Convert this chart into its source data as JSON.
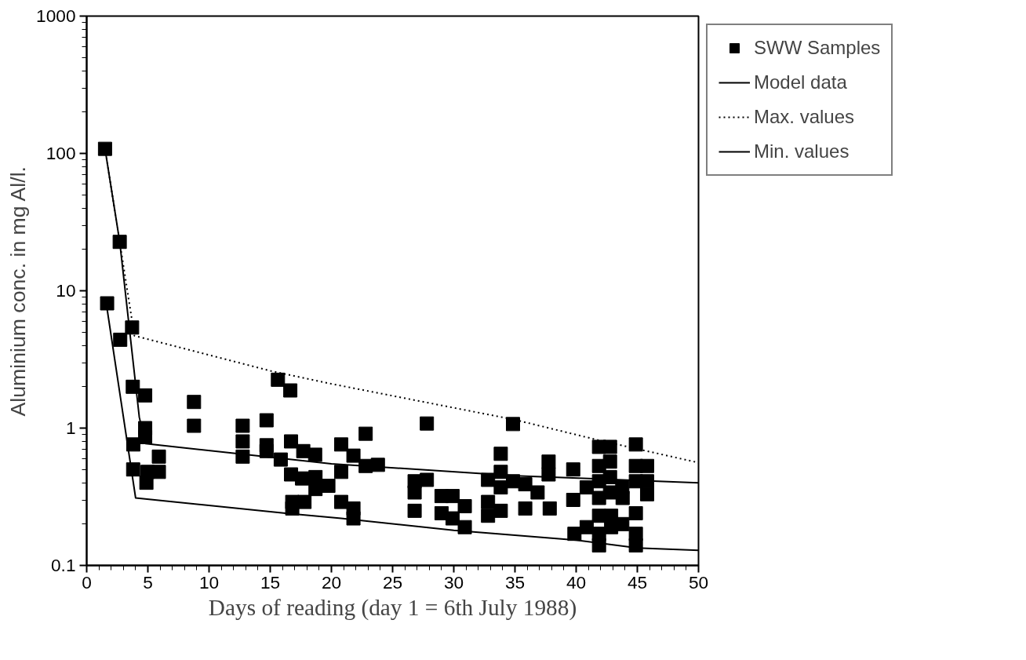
{
  "chart_data": {
    "type": "scatter",
    "xlabel": "Days of reading (day 1 = 6th July 1988)",
    "ylabel": "Aluminium conc. in mg Al/l.",
    "xlim": [
      0,
      50
    ],
    "xticks": [
      0,
      5,
      10,
      15,
      20,
      25,
      30,
      35,
      40,
      45,
      50
    ],
    "ylim": [
      0.1,
      1000
    ],
    "yticks": [
      0.1,
      1,
      10,
      100,
      1000
    ],
    "log": "y",
    "grid": false,
    "legend": "top right",
    "series": [
      {
        "name": "SWW Samples",
        "marker": "square",
        "color": "#000000",
        "x": [
          1.5,
          2.7,
          1.67,
          3.71,
          2.74,
          3.77,
          4.78,
          8.77,
          8.77,
          4.78,
          4.78,
          3.81,
          5.9,
          3.8,
          4.97,
          5.9,
          4.88,
          12.75,
          12.75,
          12.75,
          14.7,
          14.7,
          14.7,
          15.63,
          16.64,
          16.7,
          15.86,
          17.7,
          18.67,
          16.7,
          17.6,
          18.7,
          18.7,
          19.75,
          16.8,
          16.8,
          17.8,
          20.8,
          20.8,
          20.8,
          21.8,
          22.8,
          23.8,
          22.8,
          21.8,
          21.8,
          27.8,
          26.8,
          27.8,
          26.8,
          26.8,
          29.0,
          29.9,
          30.9,
          29.0,
          29.9,
          30.9,
          34.84,
          33.84,
          33.84,
          32.8,
          33.84,
          34.84,
          35.84,
          36.85,
          32.8,
          32.8,
          33.84,
          35.84,
          37.75,
          37.75,
          37.84,
          39.76,
          39.76,
          39.86,
          40.86,
          40.86,
          41.87,
          41.87,
          41.87,
          41.87,
          41.87,
          41.87,
          41.87,
          42.77,
          42.77,
          42.77,
          42.77,
          42.86,
          42.86,
          43.77,
          43.77,
          43.8,
          44.88,
          44.88,
          44.88,
          44.88,
          44.88,
          44.88,
          45.8,
          45.8,
          45.8
        ],
        "values": [
          108,
          22.7,
          8.1,
          5.4,
          4.4,
          2.0,
          1.73,
          1.55,
          1.04,
          1.0,
          0.86,
          0.76,
          0.62,
          0.5,
          0.48,
          0.48,
          0.4,
          1.04,
          0.8,
          0.62,
          1.14,
          0.75,
          0.68,
          2.25,
          1.88,
          0.8,
          0.59,
          0.68,
          0.64,
          0.46,
          0.43,
          0.44,
          0.36,
          0.38,
          0.29,
          0.26,
          0.29,
          0.76,
          0.48,
          0.29,
          0.63,
          0.91,
          0.54,
          0.53,
          0.26,
          0.22,
          1.08,
          0.41,
          0.42,
          0.34,
          0.25,
          0.32,
          0.32,
          0.27,
          0.24,
          0.22,
          0.19,
          1.07,
          0.65,
          0.48,
          0.42,
          0.37,
          0.41,
          0.39,
          0.34,
          0.29,
          0.23,
          0.25,
          0.26,
          0.57,
          0.46,
          0.26,
          0.5,
          0.3,
          0.17,
          0.37,
          0.19,
          0.73,
          0.53,
          0.41,
          0.31,
          0.23,
          0.17,
          0.14,
          0.73,
          0.57,
          0.44,
          0.34,
          0.23,
          0.19,
          0.37,
          0.2,
          0.31,
          0.76,
          0.53,
          0.41,
          0.24,
          0.17,
          0.14,
          0.53,
          0.41,
          0.33
        ]
      },
      {
        "name": "Model data",
        "type": "line",
        "color": "#000000",
        "line_style": "solid",
        "marker": "none",
        "x": [
          1.5,
          2.7,
          4.3,
          4.8,
          20,
          35,
          50
        ],
        "values": [
          108,
          22.7,
          1.2,
          0.77,
          0.55,
          0.45,
          0.4
        ]
      },
      {
        "name": "Max. values",
        "type": "line",
        "color": "#000000",
        "line_style": "dotted",
        "marker": "none",
        "x": [
          1.5,
          2.7,
          3.9,
          15.1,
          20,
          35,
          42,
          50
        ],
        "values": [
          108,
          22.7,
          4.7,
          2.6,
          2.1,
          1.15,
          0.81,
          0.56
        ]
      },
      {
        "name": "Min. values",
        "type": "line",
        "color": "#000000",
        "line_style": "solid",
        "marker": "none",
        "x": [
          1.6,
          4,
          16.25,
          20.8,
          30,
          40,
          45,
          50
        ],
        "values": [
          8.1,
          0.31,
          0.24,
          0.22,
          0.18,
          0.153,
          0.134,
          0.129
        ]
      }
    ]
  }
}
